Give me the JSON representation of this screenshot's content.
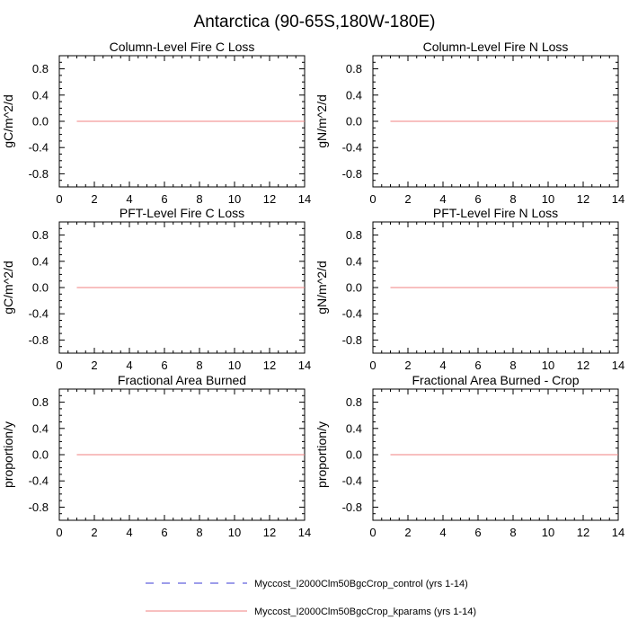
{
  "figure": {
    "title": "Antarctica (90-65S,180W-180E)"
  },
  "legend": {
    "entries": [
      {
        "label": "Myccost_I2000Clm50BgcCrop_control (yrs 1-14)",
        "color": "#3b3bd6",
        "dash": "dashed"
      },
      {
        "label": "Myccost_I2000Clm50BgcCrop_kparams (yrs 1-14)",
        "color": "#f08080",
        "dash": "solid"
      }
    ],
    "placement": "bottom-center"
  },
  "chart_data": [
    {
      "type": "line",
      "title": "Column-Level Fire C Loss",
      "xlabel": "",
      "ylabel": "gC/m^2/d",
      "xlim": [
        0,
        14
      ],
      "ylim": [
        -1,
        1
      ],
      "xticks": [
        "0",
        "2",
        "4",
        "6",
        "8",
        "10",
        "12",
        "14"
      ],
      "yticks": [
        "-0.8",
        "-0.4",
        "0.0",
        "0.4",
        "0.8"
      ],
      "x": [
        1,
        2,
        3,
        4,
        5,
        6,
        7,
        8,
        9,
        10,
        11,
        12,
        13,
        14
      ],
      "series": [
        {
          "name": "Myccost_I2000Clm50BgcCrop_control (yrs 1-14)",
          "values": [
            0,
            0,
            0,
            0,
            0,
            0,
            0,
            0,
            0,
            0,
            0,
            0,
            0,
            0
          ]
        },
        {
          "name": "Myccost_I2000Clm50BgcCrop_kparams (yrs 1-14)",
          "values": [
            0,
            0,
            0,
            0,
            0,
            0,
            0,
            0,
            0,
            0,
            0,
            0,
            0,
            0
          ]
        }
      ],
      "grid": false
    },
    {
      "type": "line",
      "title": "Column-Level Fire N Loss",
      "xlabel": "",
      "ylabel": "gN/m^2/d",
      "xlim": [
        0,
        14
      ],
      "ylim": [
        -1,
        1
      ],
      "xticks": [
        "0",
        "2",
        "4",
        "6",
        "8",
        "10",
        "12",
        "14"
      ],
      "yticks": [
        "-0.8",
        "-0.4",
        "0.0",
        "0.4",
        "0.8"
      ],
      "x": [
        1,
        2,
        3,
        4,
        5,
        6,
        7,
        8,
        9,
        10,
        11,
        12,
        13,
        14
      ],
      "series": [
        {
          "name": "Myccost_I2000Clm50BgcCrop_control (yrs 1-14)",
          "values": [
            0,
            0,
            0,
            0,
            0,
            0,
            0,
            0,
            0,
            0,
            0,
            0,
            0,
            0
          ]
        },
        {
          "name": "Myccost_I2000Clm50BgcCrop_kparams (yrs 1-14)",
          "values": [
            0,
            0,
            0,
            0,
            0,
            0,
            0,
            0,
            0,
            0,
            0,
            0,
            0,
            0
          ]
        }
      ],
      "grid": false
    },
    {
      "type": "line",
      "title": "PFT-Level Fire C Loss",
      "xlabel": "",
      "ylabel": "gC/m^2/d",
      "xlim": [
        0,
        14
      ],
      "ylim": [
        -1,
        1
      ],
      "xticks": [
        "0",
        "2",
        "4",
        "6",
        "8",
        "10",
        "12",
        "14"
      ],
      "yticks": [
        "-0.8",
        "-0.4",
        "0.0",
        "0.4",
        "0.8"
      ],
      "x": [
        1,
        2,
        3,
        4,
        5,
        6,
        7,
        8,
        9,
        10,
        11,
        12,
        13,
        14
      ],
      "series": [
        {
          "name": "Myccost_I2000Clm50BgcCrop_control (yrs 1-14)",
          "values": [
            0,
            0,
            0,
            0,
            0,
            0,
            0,
            0,
            0,
            0,
            0,
            0,
            0,
            0
          ]
        },
        {
          "name": "Myccost_I2000Clm50BgcCrop_kparams (yrs 1-14)",
          "values": [
            0,
            0,
            0,
            0,
            0,
            0,
            0,
            0,
            0,
            0,
            0,
            0,
            0,
            0
          ]
        }
      ],
      "grid": false
    },
    {
      "type": "line",
      "title": "PFT-Level Fire N Loss",
      "xlabel": "",
      "ylabel": "gN/m^2/d",
      "xlim": [
        0,
        14
      ],
      "ylim": [
        -1,
        1
      ],
      "xticks": [
        "0",
        "2",
        "4",
        "6",
        "8",
        "10",
        "12",
        "14"
      ],
      "yticks": [
        "-0.8",
        "-0.4",
        "0.0",
        "0.4",
        "0.8"
      ],
      "x": [
        1,
        2,
        3,
        4,
        5,
        6,
        7,
        8,
        9,
        10,
        11,
        12,
        13,
        14
      ],
      "series": [
        {
          "name": "Myccost_I2000Clm50BgcCrop_control (yrs 1-14)",
          "values": [
            0,
            0,
            0,
            0,
            0,
            0,
            0,
            0,
            0,
            0,
            0,
            0,
            0,
            0
          ]
        },
        {
          "name": "Myccost_I2000Clm50BgcCrop_kparams (yrs 1-14)",
          "values": [
            0,
            0,
            0,
            0,
            0,
            0,
            0,
            0,
            0,
            0,
            0,
            0,
            0,
            0
          ]
        }
      ],
      "grid": false
    },
    {
      "type": "line",
      "title": "Fractional Area Burned",
      "xlabel": "",
      "ylabel": "proportion/y",
      "xlim": [
        0,
        14
      ],
      "ylim": [
        -1,
        1
      ],
      "xticks": [
        "0",
        "2",
        "4",
        "6",
        "8",
        "10",
        "12",
        "14"
      ],
      "yticks": [
        "-0.8",
        "-0.4",
        "0.0",
        "0.4",
        "0.8"
      ],
      "x": [
        1,
        2,
        3,
        4,
        5,
        6,
        7,
        8,
        9,
        10,
        11,
        12,
        13,
        14
      ],
      "series": [
        {
          "name": "Myccost_I2000Clm50BgcCrop_control (yrs 1-14)",
          "values": [
            0,
            0,
            0,
            0,
            0,
            0,
            0,
            0,
            0,
            0,
            0,
            0,
            0,
            0
          ]
        },
        {
          "name": "Myccost_I2000Clm50BgcCrop_kparams (yrs 1-14)",
          "values": [
            0,
            0,
            0,
            0,
            0,
            0,
            0,
            0,
            0,
            0,
            0,
            0,
            0,
            0
          ]
        }
      ],
      "grid": false
    },
    {
      "type": "line",
      "title": "Fractional Area Burned - Crop",
      "xlabel": "",
      "ylabel": "proportion/y",
      "xlim": [
        0,
        14
      ],
      "ylim": [
        -1,
        1
      ],
      "xticks": [
        "0",
        "2",
        "4",
        "6",
        "8",
        "10",
        "12",
        "14"
      ],
      "yticks": [
        "-0.8",
        "-0.4",
        "0.0",
        "0.4",
        "0.8"
      ],
      "x": [
        1,
        2,
        3,
        4,
        5,
        6,
        7,
        8,
        9,
        10,
        11,
        12,
        13,
        14
      ],
      "series": [
        {
          "name": "Myccost_I2000Clm50BgcCrop_control (yrs 1-14)",
          "values": [
            0,
            0,
            0,
            0,
            0,
            0,
            0,
            0,
            0,
            0,
            0,
            0,
            0,
            0
          ]
        },
        {
          "name": "Myccost_I2000Clm50BgcCrop_kparams (yrs 1-14)",
          "values": [
            0,
            0,
            0,
            0,
            0,
            0,
            0,
            0,
            0,
            0,
            0,
            0,
            0,
            0
          ]
        }
      ],
      "grid": false
    }
  ]
}
